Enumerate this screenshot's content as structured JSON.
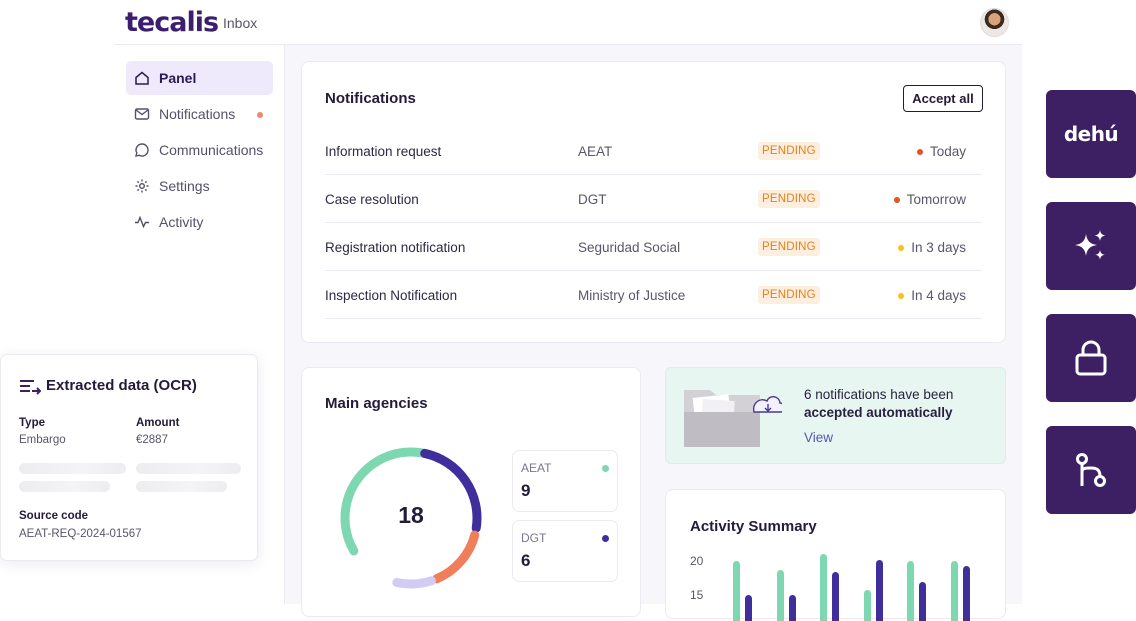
{
  "header": {
    "logo": "tecalis",
    "section": "Inbox"
  },
  "sidebar": {
    "items": [
      {
        "label": "Panel",
        "icon": "home-icon",
        "active": true
      },
      {
        "label": "Notifications",
        "icon": "mail-icon",
        "unread": true
      },
      {
        "label": "Communications",
        "icon": "chat-icon"
      },
      {
        "label": "Settings",
        "icon": "gear-icon"
      },
      {
        "label": "Activity",
        "icon": "activity-icon"
      }
    ]
  },
  "notifications": {
    "title": "Notifications",
    "accept_all": "Accept all",
    "rows": [
      {
        "name": "Information request",
        "agency": "AEAT",
        "status": "PENDING",
        "due": "Today",
        "due_color": "#e0541f"
      },
      {
        "name": "Case resolution",
        "agency": "DGT",
        "status": "PENDING",
        "due": "Tomorrow",
        "due_color": "#e0541f"
      },
      {
        "name": "Registration notification",
        "agency": "Seguridad Social",
        "status": "PENDING",
        "due": "In 3 days",
        "due_color": "#f4c418"
      },
      {
        "name": "Inspection Notification",
        "agency": "Ministry of Justice",
        "status": "PENDING",
        "due": "In 4 days",
        "due_color": "#f4c418"
      }
    ]
  },
  "agencies": {
    "title": "Main agencies",
    "total": "18",
    "stats": [
      {
        "label": "AEAT",
        "value": "9",
        "color": "#7dd8b1"
      },
      {
        "label": "DGT",
        "value": "6",
        "color": "#3f2e9c"
      }
    ]
  },
  "auto_accept": {
    "message": "6 notifications have been",
    "message_bold": "accepted automatically",
    "link": "View"
  },
  "activity": {
    "title": "Activity Summary",
    "y_ticks": [
      "20",
      "15"
    ]
  },
  "ocr": {
    "title": "Extracted data (OCR)",
    "type_label": "Type",
    "type_value": "Embargo",
    "amount_label": "Amount",
    "amount_value": "€2887",
    "source_label": "Source code",
    "source_value": "AEAT-REQ-2024-01567"
  },
  "side_tiles": {
    "dehu_label": "dehú",
    "icons": [
      "dehu-logo",
      "sparkle-icon",
      "lock-icon",
      "git-compare-icon"
    ]
  },
  "colors": {
    "brand": "#3d2063",
    "green": "#7dd8b1",
    "indigo": "#3f2e9c",
    "coral": "#f07e5a",
    "lavender": "#d2ccf5",
    "pending": "#e2811d"
  }
}
